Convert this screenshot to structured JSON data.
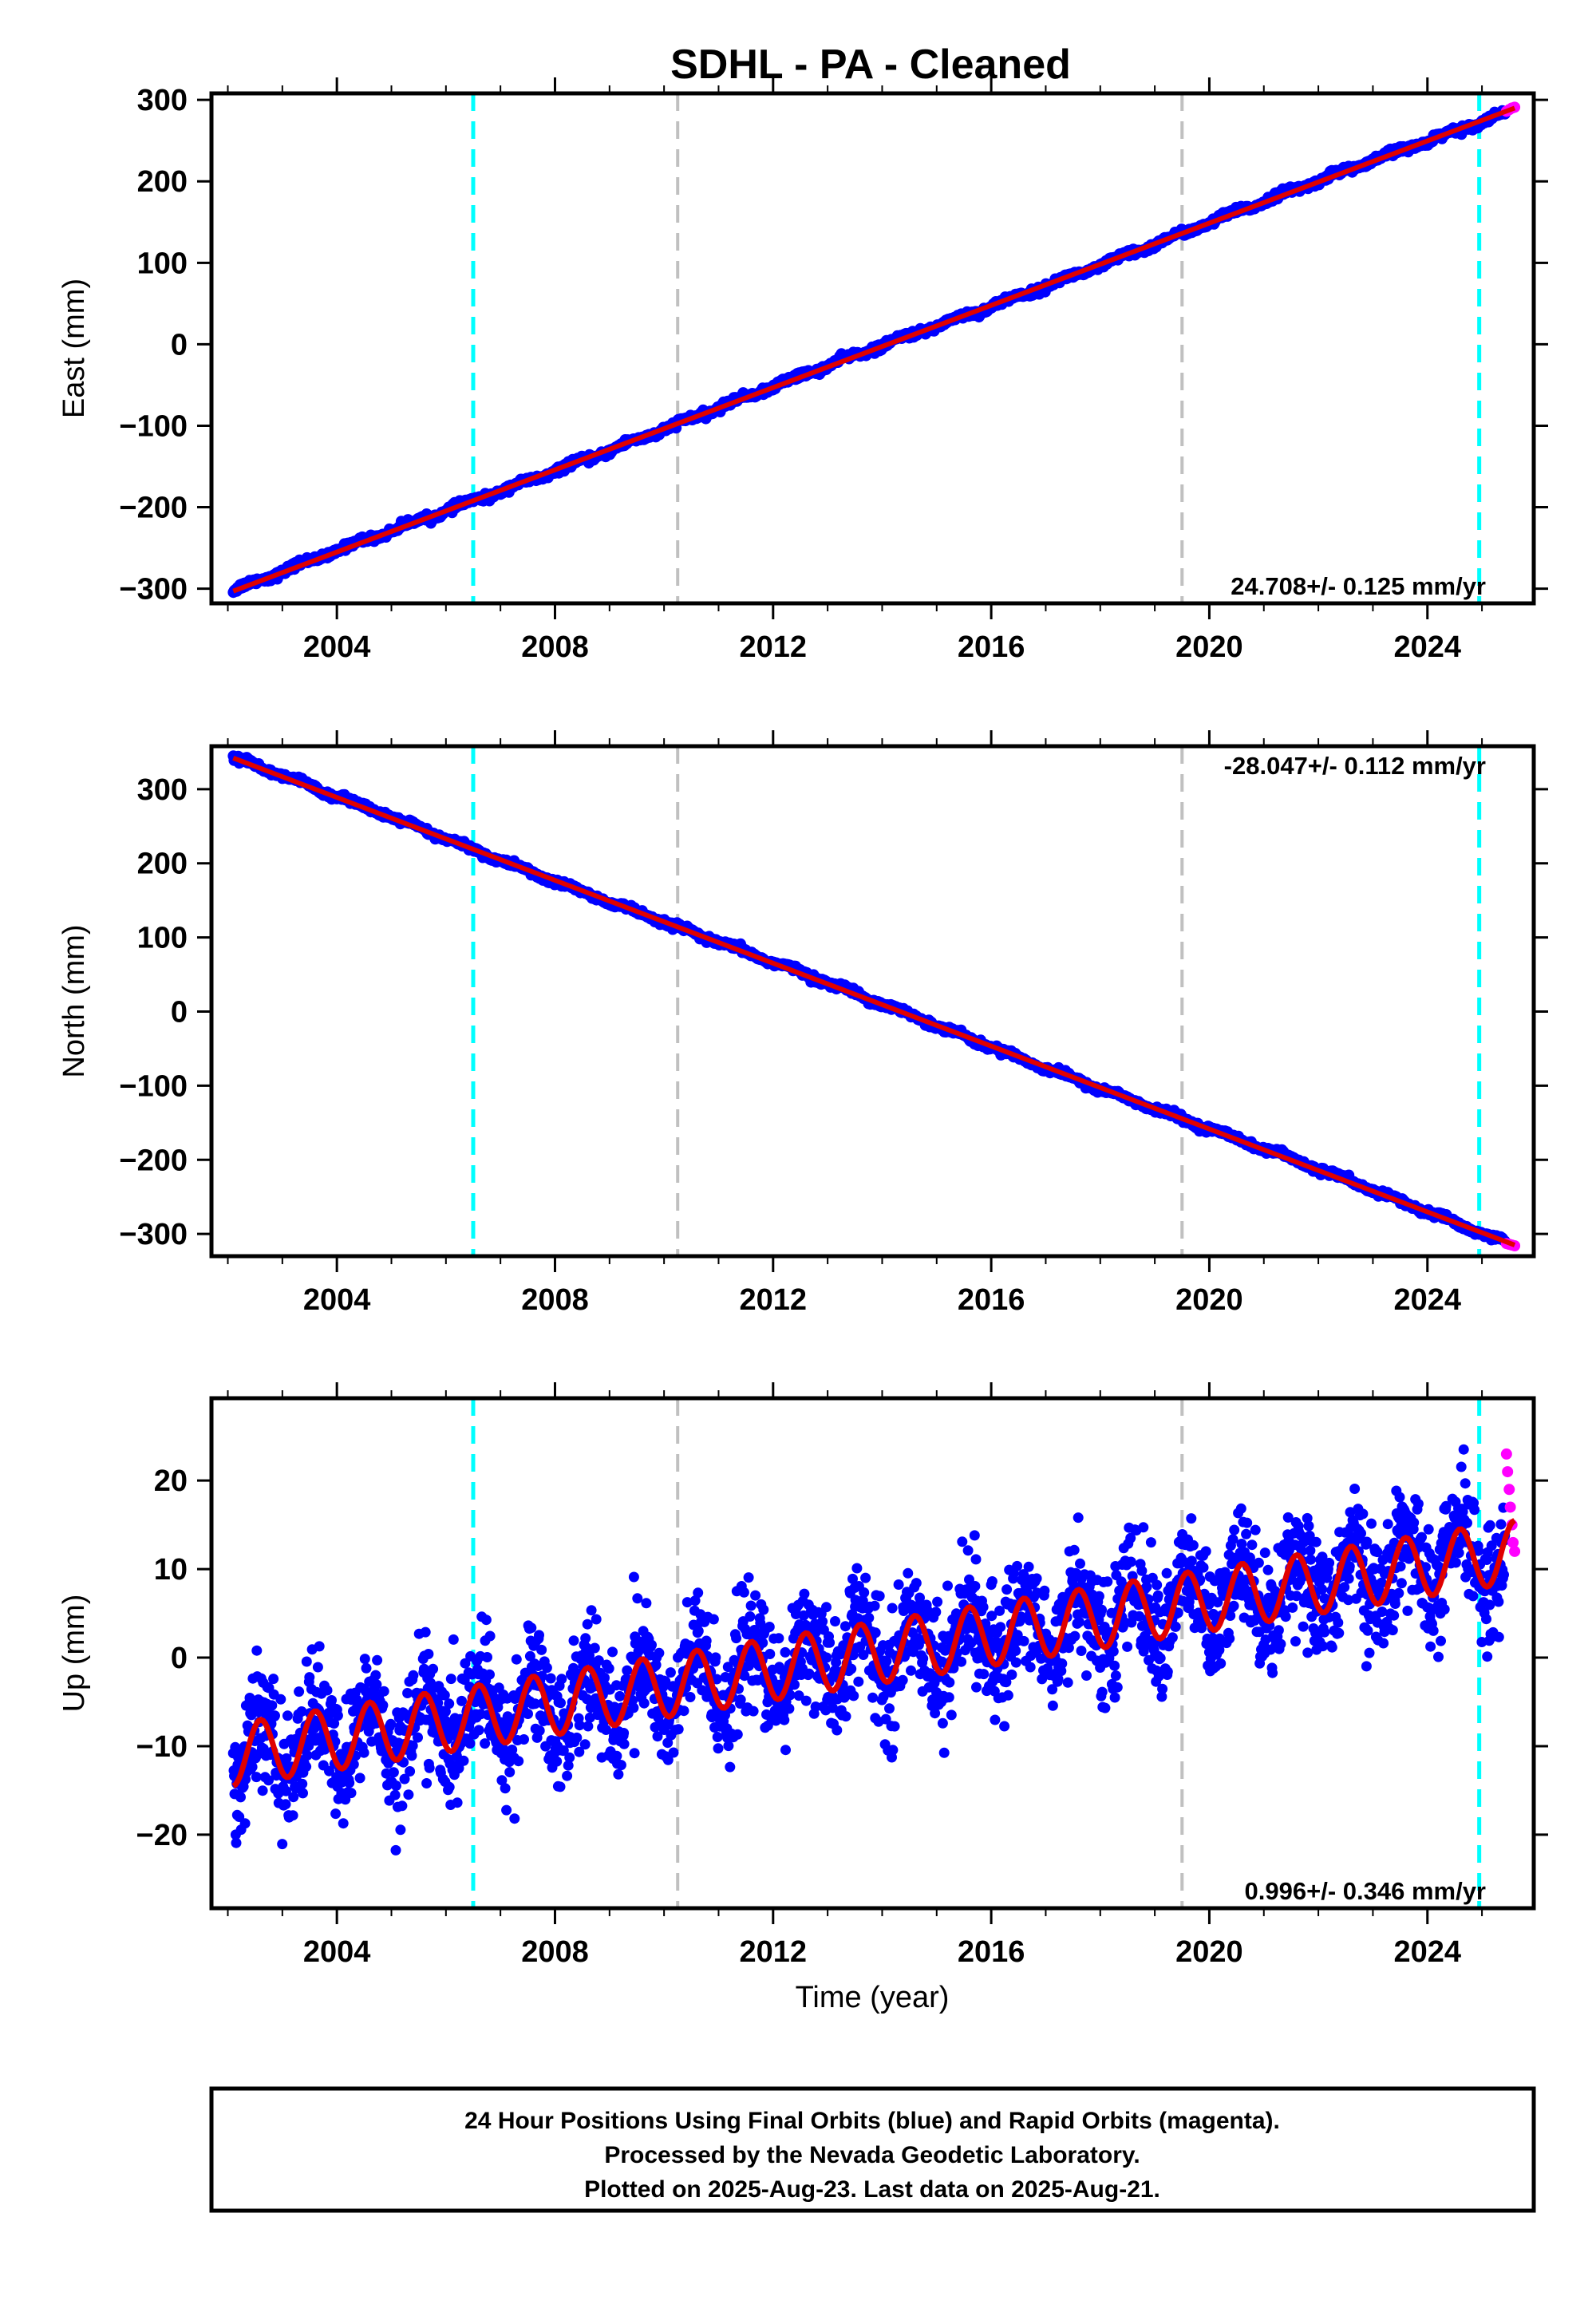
{
  "title": "SDHL  - PA - Cleaned",
  "xlabel": "Time (year)",
  "footer": {
    "line1": "24 Hour Positions Using Final Orbits (blue) and Rapid Orbits (magenta).",
    "line2": "Processed by the Nevada Geodetic Laboratory.",
    "line3": "Plotted on 2025-Aug-23. Last data on 2025-Aug-21."
  },
  "colors": {
    "final_orbits": "#0000ff",
    "rapid_orbits": "#ff00ff",
    "model_fit": "#e00000",
    "antenna_change": "#00ffff",
    "equipment_change": "#c0c0c0"
  },
  "chart_data": [
    {
      "type": "scatter",
      "name": "east",
      "ylabel": "East (mm)",
      "xlim": [
        2001.7,
        2025.95
      ],
      "ylim": [
        -318,
        308
      ],
      "xticks": [
        2004,
        2008,
        2012,
        2016,
        2020,
        2024
      ],
      "yticks": [
        -300,
        -200,
        -100,
        0,
        100,
        200,
        300
      ],
      "rate_label": "24.708+/- 0.125 mm/yr",
      "rate_mm_per_yr": 24.708,
      "rate_uncertainty": 0.125,
      "fit_start": [
        2002.1,
        -303
      ],
      "fit_end": [
        2025.6,
        290
      ],
      "rapid_orbit_points": [
        [
          2025.45,
          286
        ],
        [
          2025.5,
          288
        ],
        [
          2025.55,
          290
        ],
        [
          2025.6,
          291
        ]
      ],
      "cyan_lines": [
        2006.5,
        2024.95
      ],
      "gray_lines": [
        2010.25,
        2019.5
      ]
    },
    {
      "type": "scatter",
      "name": "north",
      "ylabel": "North (mm)",
      "xlim": [
        2001.7,
        2025.95
      ],
      "ylim": [
        -330,
        358
      ],
      "xticks": [
        2004,
        2008,
        2012,
        2016,
        2020,
        2024
      ],
      "yticks": [
        -300,
        -200,
        -100,
        0,
        100,
        200,
        300
      ],
      "rate_label": "-28.047+/- 0.112 mm/yr",
      "rate_mm_per_yr": -28.047,
      "rate_uncertainty": 0.112,
      "fit_start": [
        2002.1,
        342
      ],
      "fit_end": [
        2025.6,
        -315
      ],
      "rapid_orbit_points": [
        [
          2025.45,
          -313
        ],
        [
          2025.5,
          -314
        ],
        [
          2025.55,
          -315
        ],
        [
          2025.6,
          -316
        ]
      ],
      "cyan_lines": [
        2006.5,
        2024.95
      ],
      "gray_lines": [
        2010.25,
        2019.5
      ]
    },
    {
      "type": "scatter",
      "name": "up",
      "ylabel": "Up (mm)",
      "xlim": [
        2001.7,
        2025.95
      ],
      "ylim": [
        -28.3,
        29.3
      ],
      "xticks": [
        2004,
        2008,
        2012,
        2016,
        2020,
        2024
      ],
      "yticks": [
        -20,
        -10,
        0,
        10,
        20
      ],
      "rate_label": "0.996+/- 0.346 mm/yr",
      "rate_mm_per_yr": 0.996,
      "rate_uncertainty": 0.346,
      "model_start": [
        2002.1,
        -11
      ],
      "model_end": [
        2025.6,
        12
      ],
      "seasonal_amplitude_mm": 3.5,
      "rapid_orbit_points": [
        [
          2025.45,
          23
        ],
        [
          2025.47,
          21
        ],
        [
          2025.5,
          19
        ],
        [
          2025.52,
          17
        ],
        [
          2025.55,
          15
        ],
        [
          2025.57,
          13
        ],
        [
          2025.6,
          12
        ]
      ],
      "cyan_lines": [
        2006.5,
        2024.95
      ],
      "gray_lines": [
        2010.25,
        2019.5
      ]
    }
  ]
}
